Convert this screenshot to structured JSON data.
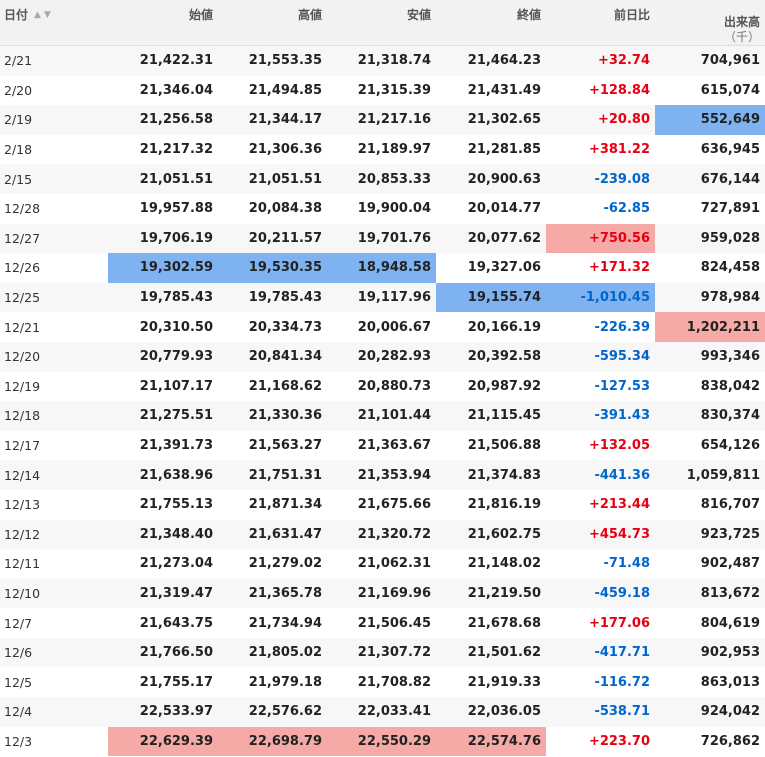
{
  "header": {
    "date": "日付",
    "open": "始値",
    "high": "高値",
    "low": "安値",
    "close": "終値",
    "change": "前日比",
    "volume": "出来高",
    "volume_unit": "（千）",
    "sort_up": "▲",
    "sort_down": "▼"
  },
  "rows": [
    {
      "date": "2/21",
      "open": "21,422.31",
      "high": "21,553.35",
      "low": "21,318.74",
      "close": "21,464.23",
      "change": "+32.74",
      "volume": "704,961"
    },
    {
      "date": "2/20",
      "open": "21,346.04",
      "high": "21,494.85",
      "low": "21,315.39",
      "close": "21,431.49",
      "change": "+128.84",
      "volume": "615,074"
    },
    {
      "date": "2/19",
      "open": "21,256.58",
      "high": "21,344.17",
      "low": "21,217.16",
      "close": "21,302.65",
      "change": "+20.80",
      "volume": "552,649"
    },
    {
      "date": "2/18",
      "open": "21,217.32",
      "high": "21,306.36",
      "low": "21,189.97",
      "close": "21,281.85",
      "change": "+381.22",
      "volume": "636,945"
    },
    {
      "date": "2/15",
      "open": "21,051.51",
      "high": "21,051.51",
      "low": "20,853.33",
      "close": "20,900.63",
      "change": "-239.08",
      "volume": "676,144"
    },
    {
      "date": "12/28",
      "open": "19,957.88",
      "high": "20,084.38",
      "low": "19,900.04",
      "close": "20,014.77",
      "change": "-62.85",
      "volume": "727,891"
    },
    {
      "date": "12/27",
      "open": "19,706.19",
      "high": "20,211.57",
      "low": "19,701.76",
      "close": "20,077.62",
      "change": "+750.56",
      "volume": "959,028"
    },
    {
      "date": "12/26",
      "open": "19,302.59",
      "high": "19,530.35",
      "low": "18,948.58",
      "close": "19,327.06",
      "change": "+171.32",
      "volume": "824,458"
    },
    {
      "date": "12/25",
      "open": "19,785.43",
      "high": "19,785.43",
      "low": "19,117.96",
      "close": "19,155.74",
      "change": "-1,010.45",
      "volume": "978,984"
    },
    {
      "date": "12/21",
      "open": "20,310.50",
      "high": "20,334.73",
      "low": "20,006.67",
      "close": "20,166.19",
      "change": "-226.39",
      "volume": "1,202,211"
    },
    {
      "date": "12/20",
      "open": "20,779.93",
      "high": "20,841.34",
      "low": "20,282.93",
      "close": "20,392.58",
      "change": "-595.34",
      "volume": "993,346"
    },
    {
      "date": "12/19",
      "open": "21,107.17",
      "high": "21,168.62",
      "low": "20,880.73",
      "close": "20,987.92",
      "change": "-127.53",
      "volume": "838,042"
    },
    {
      "date": "12/18",
      "open": "21,275.51",
      "high": "21,330.36",
      "low": "21,101.44",
      "close": "21,115.45",
      "change": "-391.43",
      "volume": "830,374"
    },
    {
      "date": "12/17",
      "open": "21,391.73",
      "high": "21,563.27",
      "low": "21,363.67",
      "close": "21,506.88",
      "change": "+132.05",
      "volume": "654,126"
    },
    {
      "date": "12/14",
      "open": "21,638.96",
      "high": "21,751.31",
      "low": "21,353.94",
      "close": "21,374.83",
      "change": "-441.36",
      "volume": "1,059,811"
    },
    {
      "date": "12/13",
      "open": "21,755.13",
      "high": "21,871.34",
      "low": "21,675.66",
      "close": "21,816.19",
      "change": "+213.44",
      "volume": "816,707"
    },
    {
      "date": "12/12",
      "open": "21,348.40",
      "high": "21,631.47",
      "low": "21,320.72",
      "close": "21,602.75",
      "change": "+454.73",
      "volume": "923,725"
    },
    {
      "date": "12/11",
      "open": "21,273.04",
      "high": "21,279.02",
      "low": "21,062.31",
      "close": "21,148.02",
      "change": "-71.48",
      "volume": "902,487"
    },
    {
      "date": "12/10",
      "open": "21,319.47",
      "high": "21,365.78",
      "low": "21,169.96",
      "close": "21,219.50",
      "change": "-459.18",
      "volume": "813,672"
    },
    {
      "date": "12/7",
      "open": "21,643.75",
      "high": "21,734.94",
      "low": "21,506.45",
      "close": "21,678.68",
      "change": "+177.06",
      "volume": "804,619"
    },
    {
      "date": "12/6",
      "open": "21,766.50",
      "high": "21,805.02",
      "low": "21,307.72",
      "close": "21,501.62",
      "change": "-417.71",
      "volume": "902,953"
    },
    {
      "date": "12/5",
      "open": "21,755.17",
      "high": "21,979.18",
      "low": "21,708.82",
      "close": "21,919.33",
      "change": "-116.72",
      "volume": "863,013"
    },
    {
      "date": "12/4",
      "open": "22,533.97",
      "high": "22,576.62",
      "low": "22,033.41",
      "close": "22,036.05",
      "change": "-538.71",
      "volume": "924,042"
    },
    {
      "date": "12/3",
      "open": "22,629.39",
      "high": "22,698.79",
      "low": "22,550.29",
      "close": "22,574.76",
      "change": "+223.70",
      "volume": "726,862"
    }
  ],
  "highlights": {
    "blue": [
      [
        "2",
        "volume"
      ],
      [
        "7",
        "open"
      ],
      [
        "7",
        "high"
      ],
      [
        "7",
        "low"
      ],
      [
        "8",
        "close"
      ],
      [
        "8",
        "change"
      ]
    ],
    "red": [
      [
        "6",
        "change"
      ],
      [
        "9",
        "volume"
      ],
      [
        "23",
        "open"
      ],
      [
        "23",
        "high"
      ],
      [
        "23",
        "low"
      ],
      [
        "23",
        "close"
      ]
    ]
  },
  "colors": {
    "positive": "#e60012",
    "negative": "#0066cc",
    "highlight_blue": "#7fb2f0",
    "highlight_red": "#f6aaa8",
    "header_bg": "#f2f2f2"
  }
}
